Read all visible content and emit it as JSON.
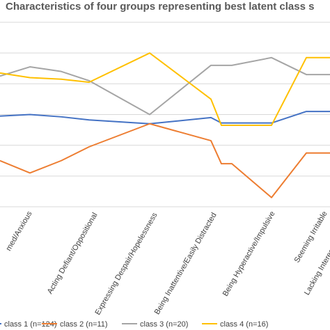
{
  "chart_data": {
    "type": "line",
    "title": "Characteristics of four groups representing best latent class s",
    "categories": [
      "Seeming Worried/Anxious",
      "Acting Defiant/Oppositional",
      "",
      "Expressing Despair/Hopelessness",
      "",
      "Being Inattentive/Easily Distracted",
      "",
      "Being Hyperactive/Impulsive",
      "",
      "Seeming Irritable",
      "Lacking Interest"
    ],
    "visible_tick_labels": [
      "med/Anxious",
      "Acting Defiant/Oppositional",
      "Expressing Despair/Hopelessness",
      "Being Inattentive/Easily Distracted",
      "Being Hyperactive/Impulsive",
      "Seeming Irritable",
      "Lacking Interes"
    ],
    "series": [
      {
        "name": "class 1 (n=124)",
        "color": "#4472C4",
        "values": [
          0.59,
          0.6,
          0.585,
          0.565,
          0.54,
          0.58,
          0.545,
          0.545,
          0.545,
          0.62,
          0.62
        ]
      },
      {
        "name": "class 2 (n=11)",
        "color": "#ED7D31",
        "values": [
          0.3,
          0.22,
          0.3,
          0.39,
          0.54,
          0.43,
          0.28,
          0.28,
          0.06,
          0.35,
          0.35
        ]
      },
      {
        "name": "class 3 (n=20)",
        "color": "#A5A5A5",
        "values": [
          0.85,
          0.91,
          0.88,
          0.82,
          0.6,
          0.92,
          0.92,
          0.92,
          0.97,
          0.86,
          0.86
        ]
      },
      {
        "name": "class 4 (n=16)",
        "color": "#FFC000",
        "values": [
          0.87,
          0.84,
          0.83,
          0.81,
          1.0,
          0.7,
          0.53,
          0.53,
          0.53,
          0.97,
          0.97
        ]
      }
    ],
    "ylim": [
      0,
      1.2
    ],
    "grid": true,
    "legend": "bottom",
    "xlabel": "",
    "ylabel": ""
  }
}
